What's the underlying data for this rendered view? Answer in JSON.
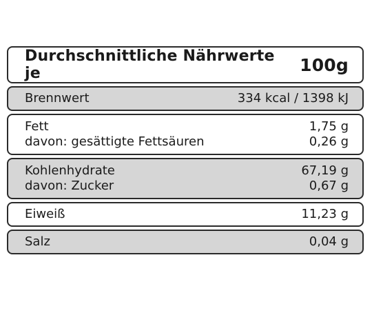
{
  "title": {
    "text": "Durchschnittliche Nährwerte je",
    "amount": "100g"
  },
  "rows": [
    {
      "lines": [
        {
          "label": "Brennwert",
          "value": "334 kcal / 1398 kJ"
        }
      ]
    },
    {
      "lines": [
        {
          "label": "Fett",
          "value": "1,75 g"
        },
        {
          "label": "davon: gesättigte Fettsäuren",
          "value": "0,26 g"
        }
      ]
    },
    {
      "lines": [
        {
          "label": "Kohlenhydrate",
          "value": "67,19 g"
        },
        {
          "label": "davon: Zucker",
          "value": "0,67 g"
        }
      ]
    },
    {
      "lines": [
        {
          "label": "Eiweiß",
          "value": "11,23 g"
        }
      ]
    },
    {
      "lines": [
        {
          "label": "Salz",
          "value": "0,04 g"
        }
      ]
    }
  ]
}
